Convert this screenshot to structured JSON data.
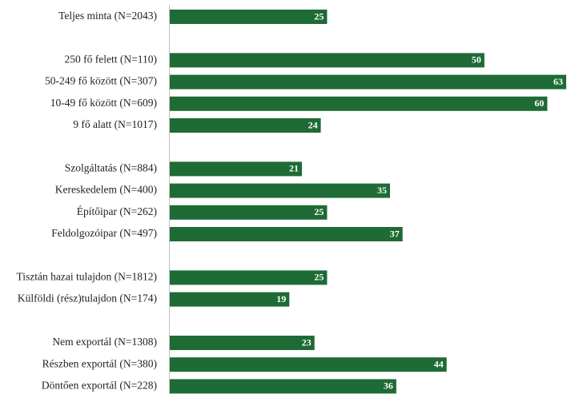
{
  "chart_data": {
    "type": "bar",
    "orientation": "horizontal",
    "title": "",
    "xlabel": "",
    "ylabel": "",
    "xlim": [
      0,
      63
    ],
    "grid": false,
    "legend": "none",
    "bar_color": "#1e6b35",
    "categories": [
      "Teljes minta (N=2043)",
      "",
      "250 fő felett (N=110)",
      "50-249 fő között (N=307)",
      "10-49 fő között (N=609)",
      "9 fő alatt (N=1017)",
      "",
      "Szolgáltatás (N=884)",
      "Kereskedelem (N=400)",
      "Építőipar (N=262)",
      "Feldolgozóipar (N=497)",
      "",
      "Tisztán hazai tulajdon (N=1812)",
      "Külföldi (rész)tulajdon (N=174)",
      "",
      "Nem exportál (N=1308)",
      "Részben exportál (N=380)",
      "Döntően exportál (N=228)"
    ],
    "values": [
      25,
      null,
      50,
      63,
      60,
      24,
      null,
      21,
      35,
      25,
      37,
      null,
      25,
      19,
      null,
      23,
      44,
      36
    ]
  }
}
